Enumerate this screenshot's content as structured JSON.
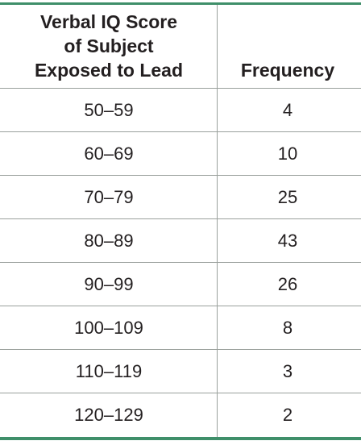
{
  "table": {
    "header": {
      "col1_lines": [
        "Verbal IQ Score",
        "of Subject",
        "Exposed to Lead"
      ],
      "col2": "Frequency"
    },
    "rows": [
      {
        "range": "50–59",
        "frequency": "4"
      },
      {
        "range": "60–69",
        "frequency": "10"
      },
      {
        "range": "70–79",
        "frequency": "25"
      },
      {
        "range": "80–89",
        "frequency": "43"
      },
      {
        "range": "90–99",
        "frequency": "26"
      },
      {
        "range": "100–109",
        "frequency": "8"
      },
      {
        "range": "110–119",
        "frequency": "3"
      },
      {
        "range": "120–129",
        "frequency": "2"
      }
    ],
    "rule_color": "#3f8f6a"
  }
}
